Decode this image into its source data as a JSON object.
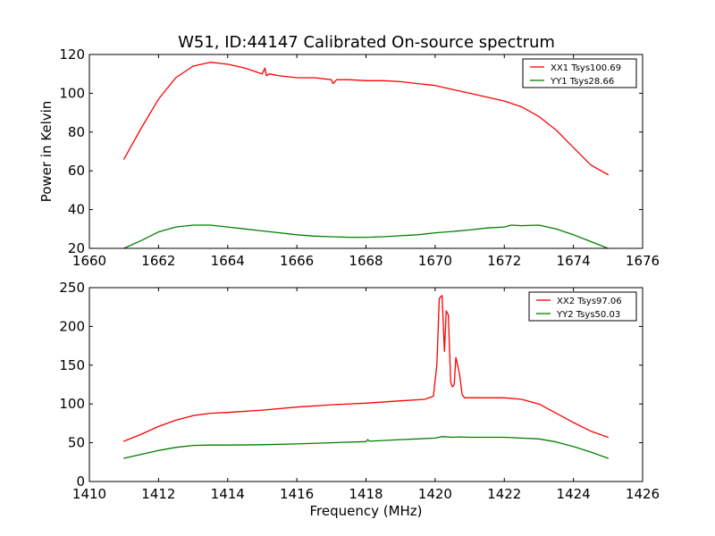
{
  "figure": {
    "title": "W51, ID:44147 Calibrated On-source spectrum"
  },
  "colors": {
    "xx": "#ff0000",
    "yy": "#008000",
    "axis": "#000000",
    "background": "#ffffff"
  },
  "chart_data": [
    {
      "type": "line",
      "title": "W51, ID:44147 Calibrated On-source spectrum",
      "xlabel": "",
      "ylabel": "Power in Kelvin",
      "xlim": [
        1660,
        1676
      ],
      "ylim": [
        20,
        120
      ],
      "xticks": [
        1660,
        1662,
        1664,
        1666,
        1668,
        1670,
        1672,
        1674,
        1676
      ],
      "yticks": [
        20,
        40,
        60,
        80,
        100,
        120
      ],
      "grid": false,
      "legend": "top-right",
      "series": [
        {
          "name": "XX1 Tsys100.69",
          "color": "#ff0000",
          "x": [
            1661.0,
            1661.5,
            1662.0,
            1662.5,
            1663.0,
            1663.5,
            1664.0,
            1664.5,
            1665.0,
            1665.08,
            1665.12,
            1665.2,
            1665.5,
            1666.0,
            1666.5,
            1667.0,
            1667.05,
            1667.15,
            1667.5,
            1668.0,
            1668.5,
            1669.0,
            1669.5,
            1670.0,
            1670.5,
            1671.0,
            1671.5,
            1672.0,
            1672.5,
            1673.0,
            1673.5,
            1674.0,
            1674.5,
            1675.0
          ],
          "y": [
            66,
            82,
            97,
            108,
            114,
            116,
            115,
            113,
            110,
            113,
            109,
            110,
            109,
            108,
            108,
            107,
            105,
            107,
            107,
            106.5,
            106.5,
            106,
            105,
            104,
            102,
            100,
            98,
            96,
            93,
            88,
            81,
            72,
            63,
            58
          ]
        },
        {
          "name": "YY1 Tsys28.66",
          "color": "#008000",
          "x": [
            1661.0,
            1661.5,
            1662.0,
            1662.5,
            1663.0,
            1663.5,
            1664.0,
            1664.5,
            1665.0,
            1665.5,
            1666.0,
            1666.5,
            1667.0,
            1667.5,
            1668.0,
            1668.5,
            1669.0,
            1669.5,
            1670.0,
            1670.5,
            1671.0,
            1671.5,
            1672.0,
            1672.2,
            1672.5,
            1673.0,
            1673.5,
            1674.0,
            1674.5,
            1675.0
          ],
          "y": [
            20,
            24,
            28.5,
            31,
            32,
            32,
            31,
            30,
            29,
            28,
            27,
            26.3,
            26,
            25.7,
            25.7,
            26,
            26.5,
            27,
            28,
            28.7,
            29.5,
            30.5,
            31,
            32,
            31.7,
            32,
            30,
            27,
            23.5,
            20
          ]
        }
      ]
    },
    {
      "type": "line",
      "title": "",
      "xlabel": "Frequency (MHz)",
      "ylabel": "",
      "xlim": [
        1410,
        1426
      ],
      "ylim": [
        0,
        250
      ],
      "xticks": [
        1410,
        1412,
        1414,
        1416,
        1418,
        1420,
        1422,
        1424,
        1426
      ],
      "yticks": [
        0,
        50,
        100,
        150,
        200,
        250
      ],
      "grid": false,
      "legend": "top-right",
      "series": [
        {
          "name": "XX2 Tsys97.06",
          "color": "#ff0000",
          "x": [
            1411.0,
            1411.5,
            1412.0,
            1412.5,
            1413.0,
            1413.5,
            1414.0,
            1415.0,
            1416.0,
            1417.0,
            1418.0,
            1419.0,
            1419.7,
            1419.95,
            1420.05,
            1420.12,
            1420.2,
            1420.27,
            1420.32,
            1420.38,
            1420.45,
            1420.5,
            1420.55,
            1420.6,
            1420.7,
            1420.78,
            1420.85,
            1420.95,
            1421.2,
            1422.0,
            1422.5,
            1423.0,
            1423.5,
            1424.0,
            1424.5,
            1425.0
          ],
          "y": [
            52,
            61,
            71,
            79,
            85,
            88,
            89,
            92,
            96,
            99,
            101,
            104,
            106,
            110,
            150,
            236,
            240,
            168,
            220,
            215,
            128,
            122,
            125,
            160,
            140,
            112,
            108,
            108,
            108,
            108,
            106,
            100,
            88,
            76,
            65,
            57
          ]
        },
        {
          "name": "YY2 Tsys50.03",
          "color": "#008000",
          "x": [
            1411.0,
            1411.5,
            1412.0,
            1412.5,
            1413.0,
            1413.5,
            1414.0,
            1415.0,
            1416.0,
            1417.0,
            1418.0,
            1418.05,
            1418.1,
            1419.0,
            1419.5,
            1420.0,
            1420.2,
            1420.5,
            1420.7,
            1421.0,
            1422.0,
            1423.0,
            1423.5,
            1424.0,
            1424.5,
            1425.0
          ],
          "y": [
            30,
            35,
            40,
            44,
            46.5,
            47,
            47,
            47.5,
            48.5,
            50,
            51.5,
            54,
            52,
            54,
            55,
            56,
            58,
            57,
            57.5,
            57,
            57,
            55,
            51,
            45,
            38,
            30
          ]
        }
      ]
    }
  ]
}
